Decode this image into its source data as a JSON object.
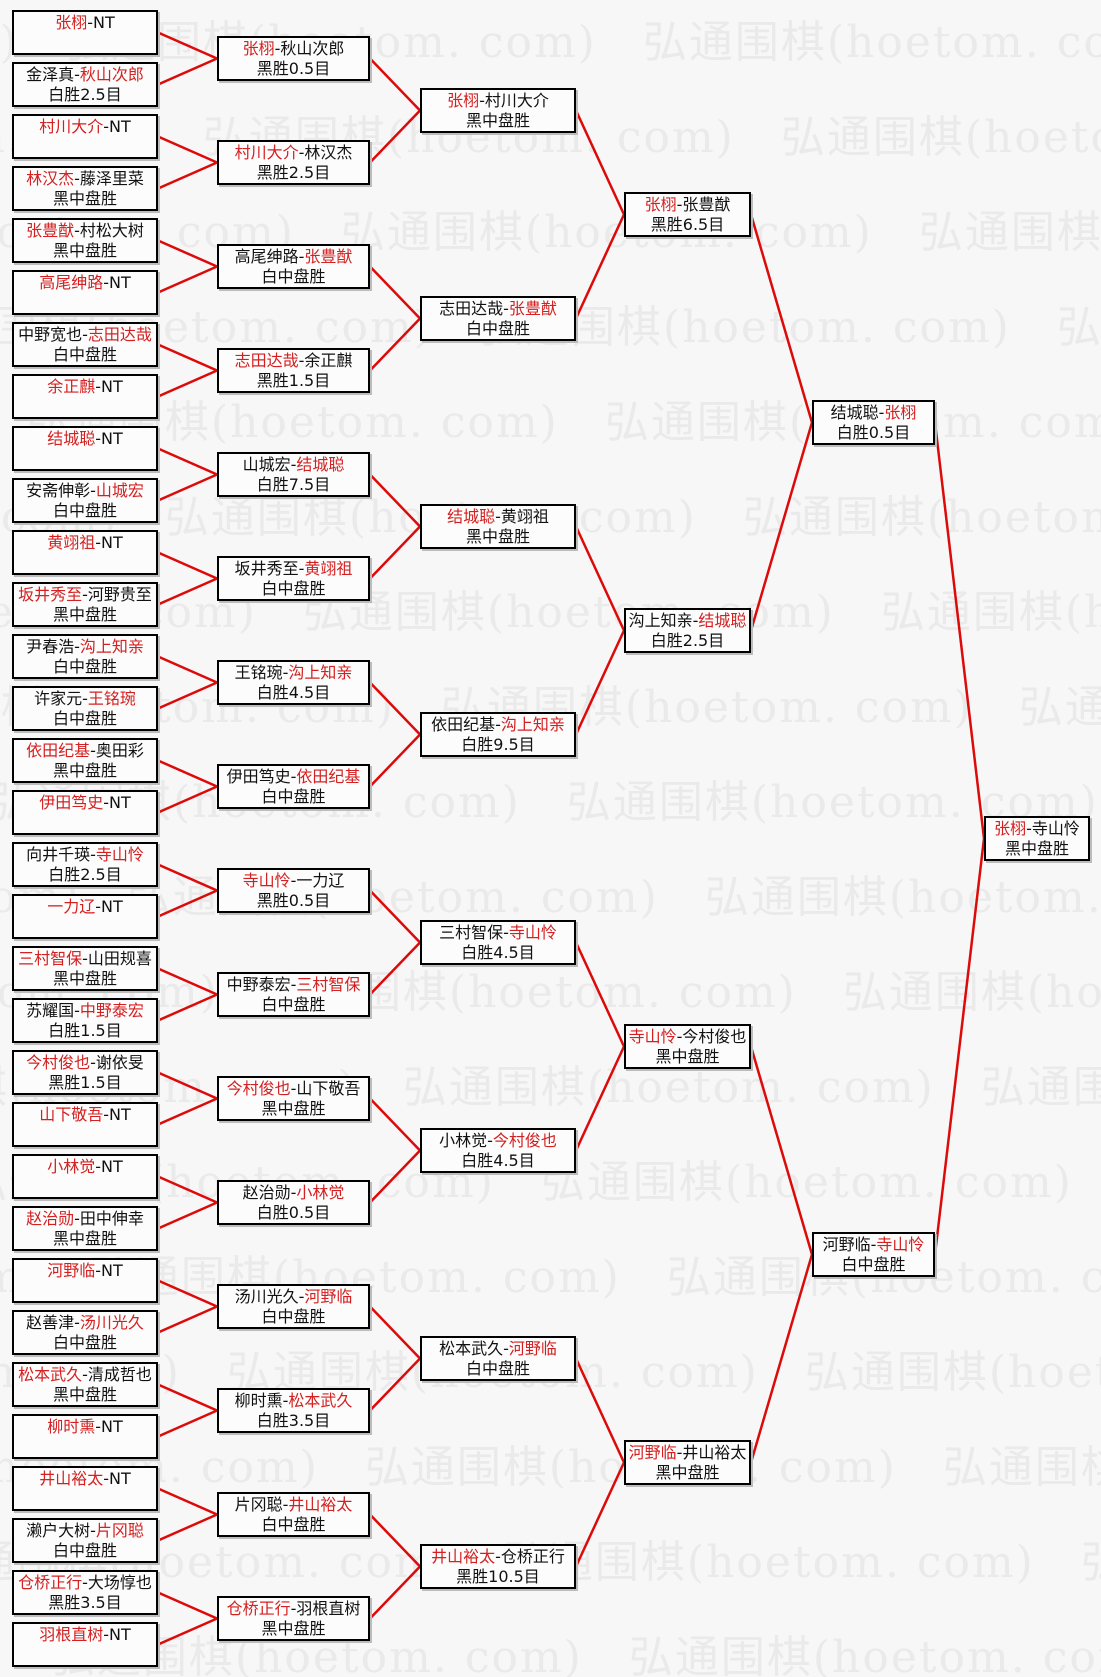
{
  "watermark": {
    "text": "弘通围棋(hoetom. com)"
  },
  "separator": "-",
  "colors": {
    "background": "#f7f7f7",
    "box_background": "#fcfcfc",
    "box_border": "#000000",
    "connector_line": "#dd0a0a",
    "winner_text": "#d42020",
    "normal_text": "#111111",
    "watermark_text": "#eaeaea"
  },
  "bracket": {
    "rounds": [
      {
        "name": "opening-round",
        "boxes": [
          {
            "p1": "张栩",
            "p2": "NT",
            "winner": 1,
            "result": ""
          },
          {
            "p1": "金泽真",
            "p2": "秋山次郎",
            "winner": 2,
            "result": "白胜2.5目"
          },
          {
            "p1": "村川大介",
            "p2": "NT",
            "winner": 1,
            "result": ""
          },
          {
            "p1": "林汉杰",
            "p2": "藤泽里菜",
            "winner": 1,
            "result": "黑中盘胜"
          },
          {
            "p1": "张豊猷",
            "p2": "村松大树",
            "winner": 1,
            "result": "黑中盘胜"
          },
          {
            "p1": "高尾绅路",
            "p2": "NT",
            "winner": 1,
            "result": ""
          },
          {
            "p1": "中野宽也",
            "p2": "志田达哉",
            "winner": 2,
            "result": "白中盘胜"
          },
          {
            "p1": "余正麒",
            "p2": "NT",
            "winner": 1,
            "result": ""
          },
          {
            "p1": "结城聪",
            "p2": "NT",
            "winner": 1,
            "result": ""
          },
          {
            "p1": "安斋伸彰",
            "p2": "山城宏",
            "winner": 2,
            "result": "白中盘胜"
          },
          {
            "p1": "黄翊祖",
            "p2": "NT",
            "winner": 1,
            "result": ""
          },
          {
            "p1": "坂井秀至",
            "p2": "河野贵至",
            "winner": 1,
            "result": "黑中盘胜"
          },
          {
            "p1": "尹春浩",
            "p2": "沟上知亲",
            "winner": 2,
            "result": "白中盘胜"
          },
          {
            "p1": "许家元",
            "p2": "王铭琬",
            "winner": 2,
            "result": "白中盘胜"
          },
          {
            "p1": "依田纪基",
            "p2": "奥田彩",
            "winner": 1,
            "result": "黑中盘胜"
          },
          {
            "p1": "伊田笃史",
            "p2": "NT",
            "winner": 1,
            "result": ""
          },
          {
            "p1": "向井千瑛",
            "p2": "寺山怜",
            "winner": 2,
            "result": "白胜2.5目"
          },
          {
            "p1": "一力辽",
            "p2": "NT",
            "winner": 1,
            "result": ""
          },
          {
            "p1": "三村智保",
            "p2": "山田规喜",
            "winner": 1,
            "result": "黑中盘胜"
          },
          {
            "p1": "苏耀国",
            "p2": "中野泰宏",
            "winner": 2,
            "result": "白胜1.5目"
          },
          {
            "p1": "今村俊也",
            "p2": "谢依旻",
            "winner": 1,
            "result": "黑胜1.5目"
          },
          {
            "p1": "山下敬吾",
            "p2": "NT",
            "winner": 1,
            "result": ""
          },
          {
            "p1": "小林觉",
            "p2": "NT",
            "winner": 1,
            "result": ""
          },
          {
            "p1": "赵治勋",
            "p2": "田中伸幸",
            "winner": 1,
            "result": "黑中盘胜"
          },
          {
            "p1": "河野临",
            "p2": "NT",
            "winner": 1,
            "result": ""
          },
          {
            "p1": "赵善津",
            "p2": "汤川光久",
            "winner": 2,
            "result": "白中盘胜"
          },
          {
            "p1": "松本武久",
            "p2": "清成哲也",
            "winner": 1,
            "result": "黑中盘胜"
          },
          {
            "p1": "柳时熏",
            "p2": "NT",
            "winner": 1,
            "result": ""
          },
          {
            "p1": "井山裕太",
            "p2": "NT",
            "winner": 1,
            "result": ""
          },
          {
            "p1": "濑户大树",
            "p2": "片冈聪",
            "winner": 2,
            "result": "白中盘胜"
          },
          {
            "p1": "仓桥正行",
            "p2": "大场惇也",
            "winner": 1,
            "result": "黑胜3.5目"
          },
          {
            "p1": "羽根直树",
            "p2": "NT",
            "winner": 1,
            "result": ""
          }
        ]
      },
      {
        "name": "round-of-32",
        "boxes": [
          {
            "p1": "张栩",
            "p2": "秋山次郎",
            "winner": 1,
            "result": "黑胜0.5目"
          },
          {
            "p1": "村川大介",
            "p2": "林汉杰",
            "winner": 1,
            "result": "黑胜2.5目"
          },
          {
            "p1": "高尾绅路",
            "p2": "张豊猷",
            "winner": 2,
            "result": "白中盘胜"
          },
          {
            "p1": "志田达哉",
            "p2": "余正麒",
            "winner": 1,
            "result": "黑胜1.5目"
          },
          {
            "p1": "山城宏",
            "p2": "结城聪",
            "winner": 2,
            "result": "白胜7.5目"
          },
          {
            "p1": "坂井秀至",
            "p2": "黄翊祖",
            "winner": 2,
            "result": "白中盘胜"
          },
          {
            "p1": "王铭琬",
            "p2": "沟上知亲",
            "winner": 2,
            "result": "白胜4.5目"
          },
          {
            "p1": "伊田笃史",
            "p2": "依田纪基",
            "winner": 2,
            "result": "白中盘胜"
          },
          {
            "p1": "寺山怜",
            "p2": "一力辽",
            "winner": 1,
            "result": "黑胜0.5目"
          },
          {
            "p1": "中野泰宏",
            "p2": "三村智保",
            "winner": 2,
            "result": "白中盘胜"
          },
          {
            "p1": "今村俊也",
            "p2": "山下敬吾",
            "winner": 1,
            "result": "黑中盘胜"
          },
          {
            "p1": "赵治勋",
            "p2": "小林觉",
            "winner": 2,
            "result": "白胜0.5目"
          },
          {
            "p1": "汤川光久",
            "p2": "河野临",
            "winner": 2,
            "result": "白中盘胜"
          },
          {
            "p1": "柳时熏",
            "p2": "松本武久",
            "winner": 2,
            "result": "白胜3.5目"
          },
          {
            "p1": "片冈聪",
            "p2": "井山裕太",
            "winner": 2,
            "result": "白中盘胜"
          },
          {
            "p1": "仓桥正行",
            "p2": "羽根直树",
            "winner": 1,
            "result": "黑中盘胜"
          }
        ]
      },
      {
        "name": "round-of-16",
        "boxes": [
          {
            "p1": "张栩",
            "p2": "村川大介",
            "winner": 1,
            "result": "黑中盘胜"
          },
          {
            "p1": "志田达哉",
            "p2": "张豊猷",
            "winner": 2,
            "result": "白中盘胜"
          },
          {
            "p1": "结城聪",
            "p2": "黄翊祖",
            "winner": 1,
            "result": "黑中盘胜"
          },
          {
            "p1": "依田纪基",
            "p2": "沟上知亲",
            "winner": 2,
            "result": "白胜9.5目"
          },
          {
            "p1": "三村智保",
            "p2": "寺山怜",
            "winner": 2,
            "result": "白胜4.5目"
          },
          {
            "p1": "小林觉",
            "p2": "今村俊也",
            "winner": 2,
            "result": "白胜4.5目"
          },
          {
            "p1": "松本武久",
            "p2": "河野临",
            "winner": 2,
            "result": "白中盘胜"
          },
          {
            "p1": "井山裕太",
            "p2": "仓桥正行",
            "winner": 1,
            "result": "黑胜10.5目"
          }
        ]
      },
      {
        "name": "quarterfinals",
        "boxes": [
          {
            "p1": "张栩",
            "p2": "张豊猷",
            "winner": 1,
            "result": "黑胜6.5目"
          },
          {
            "p1": "沟上知亲",
            "p2": "结城聪",
            "winner": 2,
            "result": "白胜2.5目"
          },
          {
            "p1": "寺山怜",
            "p2": "今村俊也",
            "winner": 1,
            "result": "黑中盘胜"
          },
          {
            "p1": "河野临",
            "p2": "井山裕太",
            "winner": 1,
            "result": "黑中盘胜"
          }
        ]
      },
      {
        "name": "semifinals",
        "boxes": [
          {
            "p1": "结城聪",
            "p2": "张栩",
            "winner": 2,
            "result": "白胜0.5目"
          },
          {
            "p1": "河野临",
            "p2": "寺山怜",
            "winner": 2,
            "result": "白中盘胜"
          }
        ]
      },
      {
        "name": "final",
        "boxes": [
          {
            "p1": "张栩",
            "p2": "寺山怜",
            "winner": 1,
            "result": "黑中盘胜"
          }
        ]
      }
    ]
  }
}
